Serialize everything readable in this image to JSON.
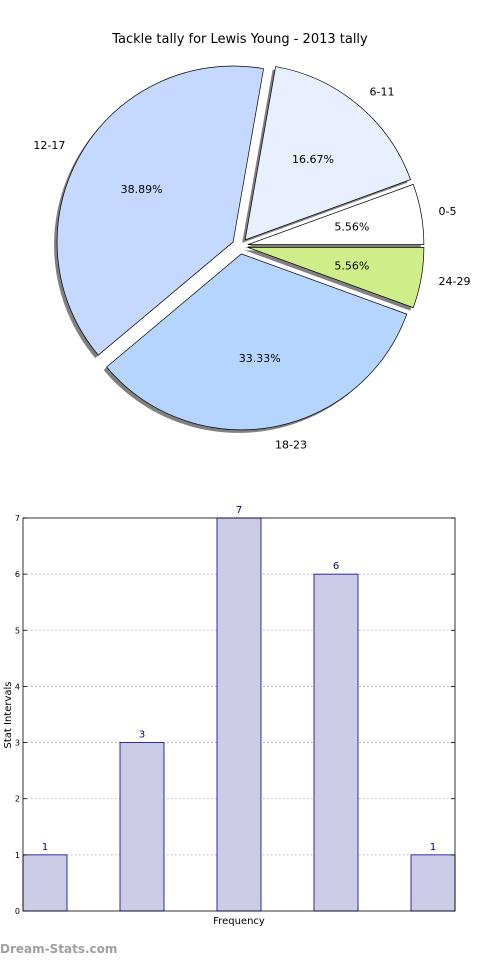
{
  "chart_data": [
    {
      "type": "pie",
      "title": "Tackle tally for Lewis Young - 2013 tally",
      "slices": [
        {
          "label": "0-5",
          "value": 5.56,
          "pct_label": "5.56%",
          "color": "#ffffff"
        },
        {
          "label": "6-11",
          "value": 16.67,
          "pct_label": "16.67%",
          "color": "#e8f0ff"
        },
        {
          "label": "12-17",
          "value": 38.89,
          "pct_label": "38.89%",
          "color": "#c5d8ff"
        },
        {
          "label": "18-23",
          "value": 33.33,
          "pct_label": "33.33%",
          "color": "#b5d5ff"
        },
        {
          "label": "24-29",
          "value": 5.56,
          "pct_label": "5.56%",
          "color": "#cfee8a"
        }
      ]
    },
    {
      "type": "bar",
      "xlabel": "Frequency",
      "ylabel": "Stat Intervals",
      "ylim": [
        0,
        7
      ],
      "yticks": [
        "0",
        "1",
        "2",
        "3",
        "4",
        "5",
        "6",
        "7"
      ],
      "values": [
        1,
        3,
        7,
        6,
        1
      ],
      "value_labels": [
        "1",
        "3",
        "7",
        "6",
        "1"
      ],
      "bar_color": "#cccce6",
      "edge_color": "#00008b",
      "grid": true
    }
  ],
  "watermark": "Dream-Stats.com"
}
